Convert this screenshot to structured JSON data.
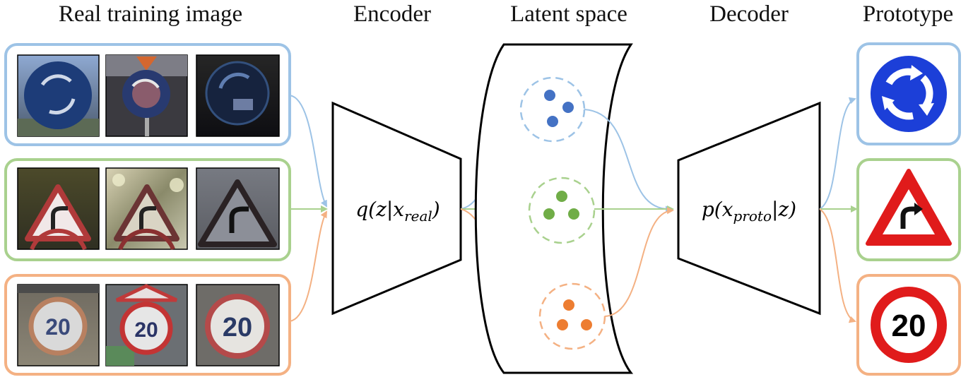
{
  "headers": {
    "real": "Real training image",
    "encoder": "Encoder",
    "latent": "Latent space",
    "decoder": "Decoder",
    "prototype": "Prototype"
  },
  "encoder_label": {
    "main": "q(z|x",
    "sub": "real",
    "close": ")"
  },
  "decoder_label": {
    "main": "p(x",
    "sub": "proto",
    "close": "|z)"
  },
  "prototype_signs": {
    "speed_limit_number": "20"
  },
  "real_images": {
    "speed_limit_number": "20"
  },
  "colors": {
    "blue": "#9dc3e6",
    "green": "#a9d18e",
    "orange": "#f4b183",
    "blue_dot": "#4472c4",
    "green_dot": "#70ad47",
    "orange_dot": "#ed7d31",
    "sign_blue": "#1c3fd8",
    "sign_red": "#e01b1b"
  }
}
